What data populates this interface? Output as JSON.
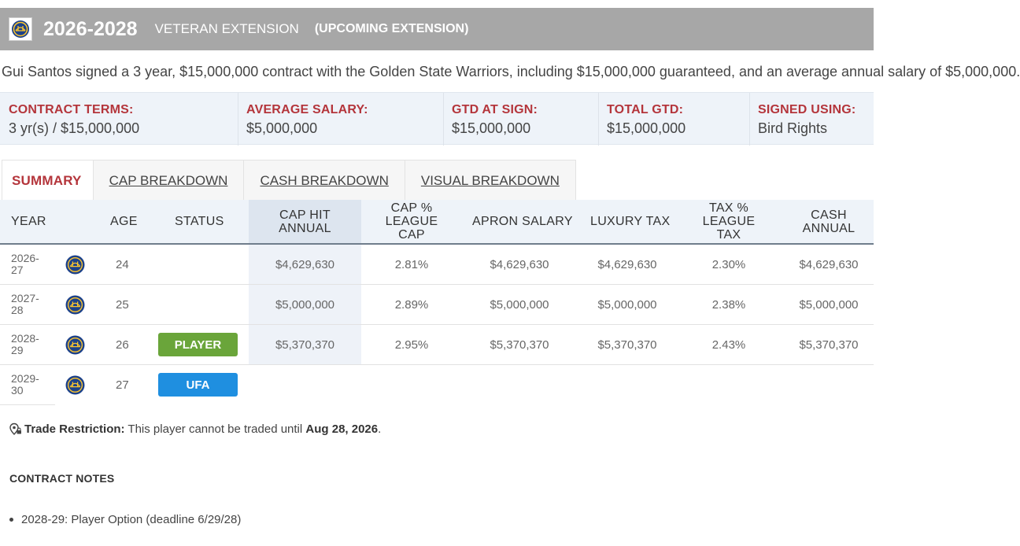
{
  "header": {
    "years": "2026-2028",
    "type": "VETERAN EXTENSION",
    "status": "(UPCOMING EXTENSION)"
  },
  "description": "Gui Santos signed a 3 year, $15,000,000 contract with the Golden State Warriors, including $15,000,000 guaranteed, and an average annual salary of $5,000,000.",
  "terms": [
    {
      "label": "CONTRACT TERMS:",
      "value": "3 yr(s) / $15,000,000"
    },
    {
      "label": "AVERAGE SALARY:",
      "value": "$5,000,000"
    },
    {
      "label": "GTD AT SIGN:",
      "value": "$15,000,000"
    },
    {
      "label": "TOTAL GTD:",
      "value": "$15,000,000"
    },
    {
      "label": "SIGNED USING:",
      "value": "Bird Rights"
    }
  ],
  "tabs": [
    "SUMMARY",
    "CAP BREAKDOWN",
    "CASH BREAKDOWN",
    "VISUAL BREAKDOWN"
  ],
  "table": {
    "headers": {
      "year": "YEAR",
      "age": "AGE",
      "status": "STATUS",
      "cap_hit_1": "CAP HIT",
      "cap_hit_2": "ANNUAL",
      "cap_pct_1": "CAP %",
      "cap_pct_2": "LEAGUE CAP",
      "apron": "APRON SALARY",
      "lux": "LUXURY TAX",
      "tax_pct_1": "TAX %",
      "tax_pct_2": "LEAGUE TAX",
      "cash_1": "CASH",
      "cash_2": "ANNUAL"
    },
    "rows": [
      {
        "year_1": "2026-",
        "year_2": "27",
        "age": "24",
        "status": "",
        "cap_hit": "$4,629,630",
        "cap_pct": "2.81%",
        "apron": "$4,629,630",
        "lux": "$4,629,630",
        "tax_pct": "2.30%",
        "cash": "$4,629,630"
      },
      {
        "year_1": "2027-",
        "year_2": "28",
        "age": "25",
        "status": "",
        "cap_hit": "$5,000,000",
        "cap_pct": "2.89%",
        "apron": "$5,000,000",
        "lux": "$5,000,000",
        "tax_pct": "2.38%",
        "cash": "$5,000,000"
      },
      {
        "year_1": "2028-",
        "year_2": "29",
        "age": "26",
        "status": "PLAYER",
        "cap_hit": "$5,370,370",
        "cap_pct": "2.95%",
        "apron": "$5,370,370",
        "lux": "$5,370,370",
        "tax_pct": "2.43%",
        "cash": "$5,370,370"
      },
      {
        "year_1": "2029-",
        "year_2": "30",
        "age": "27",
        "status": "UFA",
        "cap_hit": "",
        "cap_pct": "",
        "apron": "",
        "lux": "",
        "tax_pct": "",
        "cash": ""
      }
    ]
  },
  "trade": {
    "label": "Trade Restriction:",
    "text": " This player cannot be traded until ",
    "date": "Aug 28, 2026",
    "end": "."
  },
  "notes": {
    "heading": "CONTRACT NOTES",
    "items": [
      "2028-29: Player Option (deadline 6/29/28)"
    ]
  },
  "colors": {
    "header_bg": "#a7a7a7",
    "accent_red": "#b4353b",
    "player_badge": "#6aa53a",
    "ufa_badge": "#1f8fe0",
    "warriors_blue": "#1d428a",
    "warriors_gold": "#ffc72c"
  }
}
